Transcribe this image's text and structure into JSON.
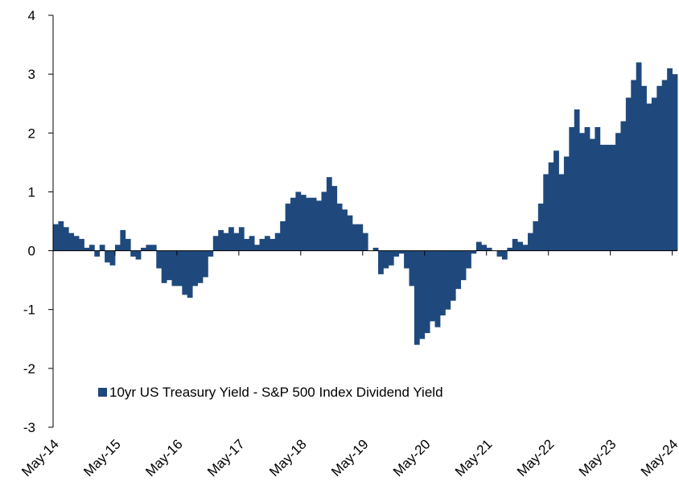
{
  "chart_data": {
    "type": "bar",
    "legend": "lower left",
    "series": [
      {
        "name": "10yr US Treasury Yield - S&P 500 Index Dividend Yield",
        "color": "#1f497d",
        "values": [
          0.45,
          0.5,
          0.4,
          0.3,
          0.25,
          0.2,
          0.05,
          0.1,
          -0.1,
          0.1,
          -0.2,
          -0.25,
          0.1,
          0.35,
          0.2,
          -0.1,
          -0.15,
          0.05,
          0.1,
          0.1,
          -0.3,
          -0.55,
          -0.5,
          -0.6,
          -0.6,
          -0.75,
          -0.8,
          -0.6,
          -0.55,
          -0.45,
          -0.1,
          0.25,
          0.35,
          0.3,
          0.4,
          0.3,
          0.4,
          0.2,
          0.25,
          0.1,
          0.2,
          0.25,
          0.2,
          0.3,
          0.5,
          0.8,
          0.9,
          1.0,
          0.95,
          0.9,
          0.9,
          0.85,
          1.0,
          1.25,
          1.1,
          0.8,
          0.7,
          0.6,
          0.45,
          0.45,
          0.3,
          0.0,
          0.05,
          -0.4,
          -0.3,
          -0.25,
          -0.1,
          -0.05,
          -0.3,
          -0.6,
          -1.6,
          -1.5,
          -1.4,
          -1.2,
          -1.3,
          -1.1,
          -1.0,
          -0.85,
          -0.65,
          -0.5,
          -0.3,
          -0.05,
          0.15,
          0.1,
          0.05,
          0.0,
          -0.1,
          -0.15,
          0.05,
          0.2,
          0.15,
          0.1,
          0.3,
          0.5,
          0.8,
          1.3,
          1.5,
          1.7,
          1.3,
          1.6,
          2.1,
          2.4,
          2.0,
          2.1,
          1.9,
          2.1,
          1.8,
          1.8,
          1.8,
          2.0,
          2.2,
          2.6,
          2.9,
          3.2,
          2.8,
          2.5,
          2.6,
          2.8,
          2.9,
          3.1,
          3.0
        ]
      }
    ],
    "categories": [
      "May-14",
      null,
      null,
      null,
      null,
      null,
      null,
      null,
      null,
      null,
      null,
      null,
      "May-15",
      null,
      null,
      null,
      null,
      null,
      null,
      null,
      null,
      null,
      null,
      null,
      "May-16",
      null,
      null,
      null,
      null,
      null,
      null,
      null,
      null,
      null,
      null,
      null,
      "May-17",
      null,
      null,
      null,
      null,
      null,
      null,
      null,
      null,
      null,
      null,
      null,
      "May-18",
      null,
      null,
      null,
      null,
      null,
      null,
      null,
      null,
      null,
      null,
      null,
      "May-19",
      null,
      null,
      null,
      null,
      null,
      null,
      null,
      null,
      null,
      null,
      null,
      "May-20",
      null,
      null,
      null,
      null,
      null,
      null,
      null,
      null,
      null,
      null,
      null,
      "May-21",
      null,
      null,
      null,
      null,
      null,
      null,
      null,
      null,
      null,
      null,
      null,
      "May-22",
      null,
      null,
      null,
      null,
      null,
      null,
      null,
      null,
      null,
      null,
      null,
      "May-23",
      null,
      null,
      null,
      null,
      null,
      null,
      null,
      null,
      null,
      null,
      null,
      "May-24"
    ],
    "ylim": [
      -3,
      4
    ],
    "yticks": [
      -3,
      -2,
      -1,
      0,
      1,
      2,
      3,
      4
    ]
  }
}
